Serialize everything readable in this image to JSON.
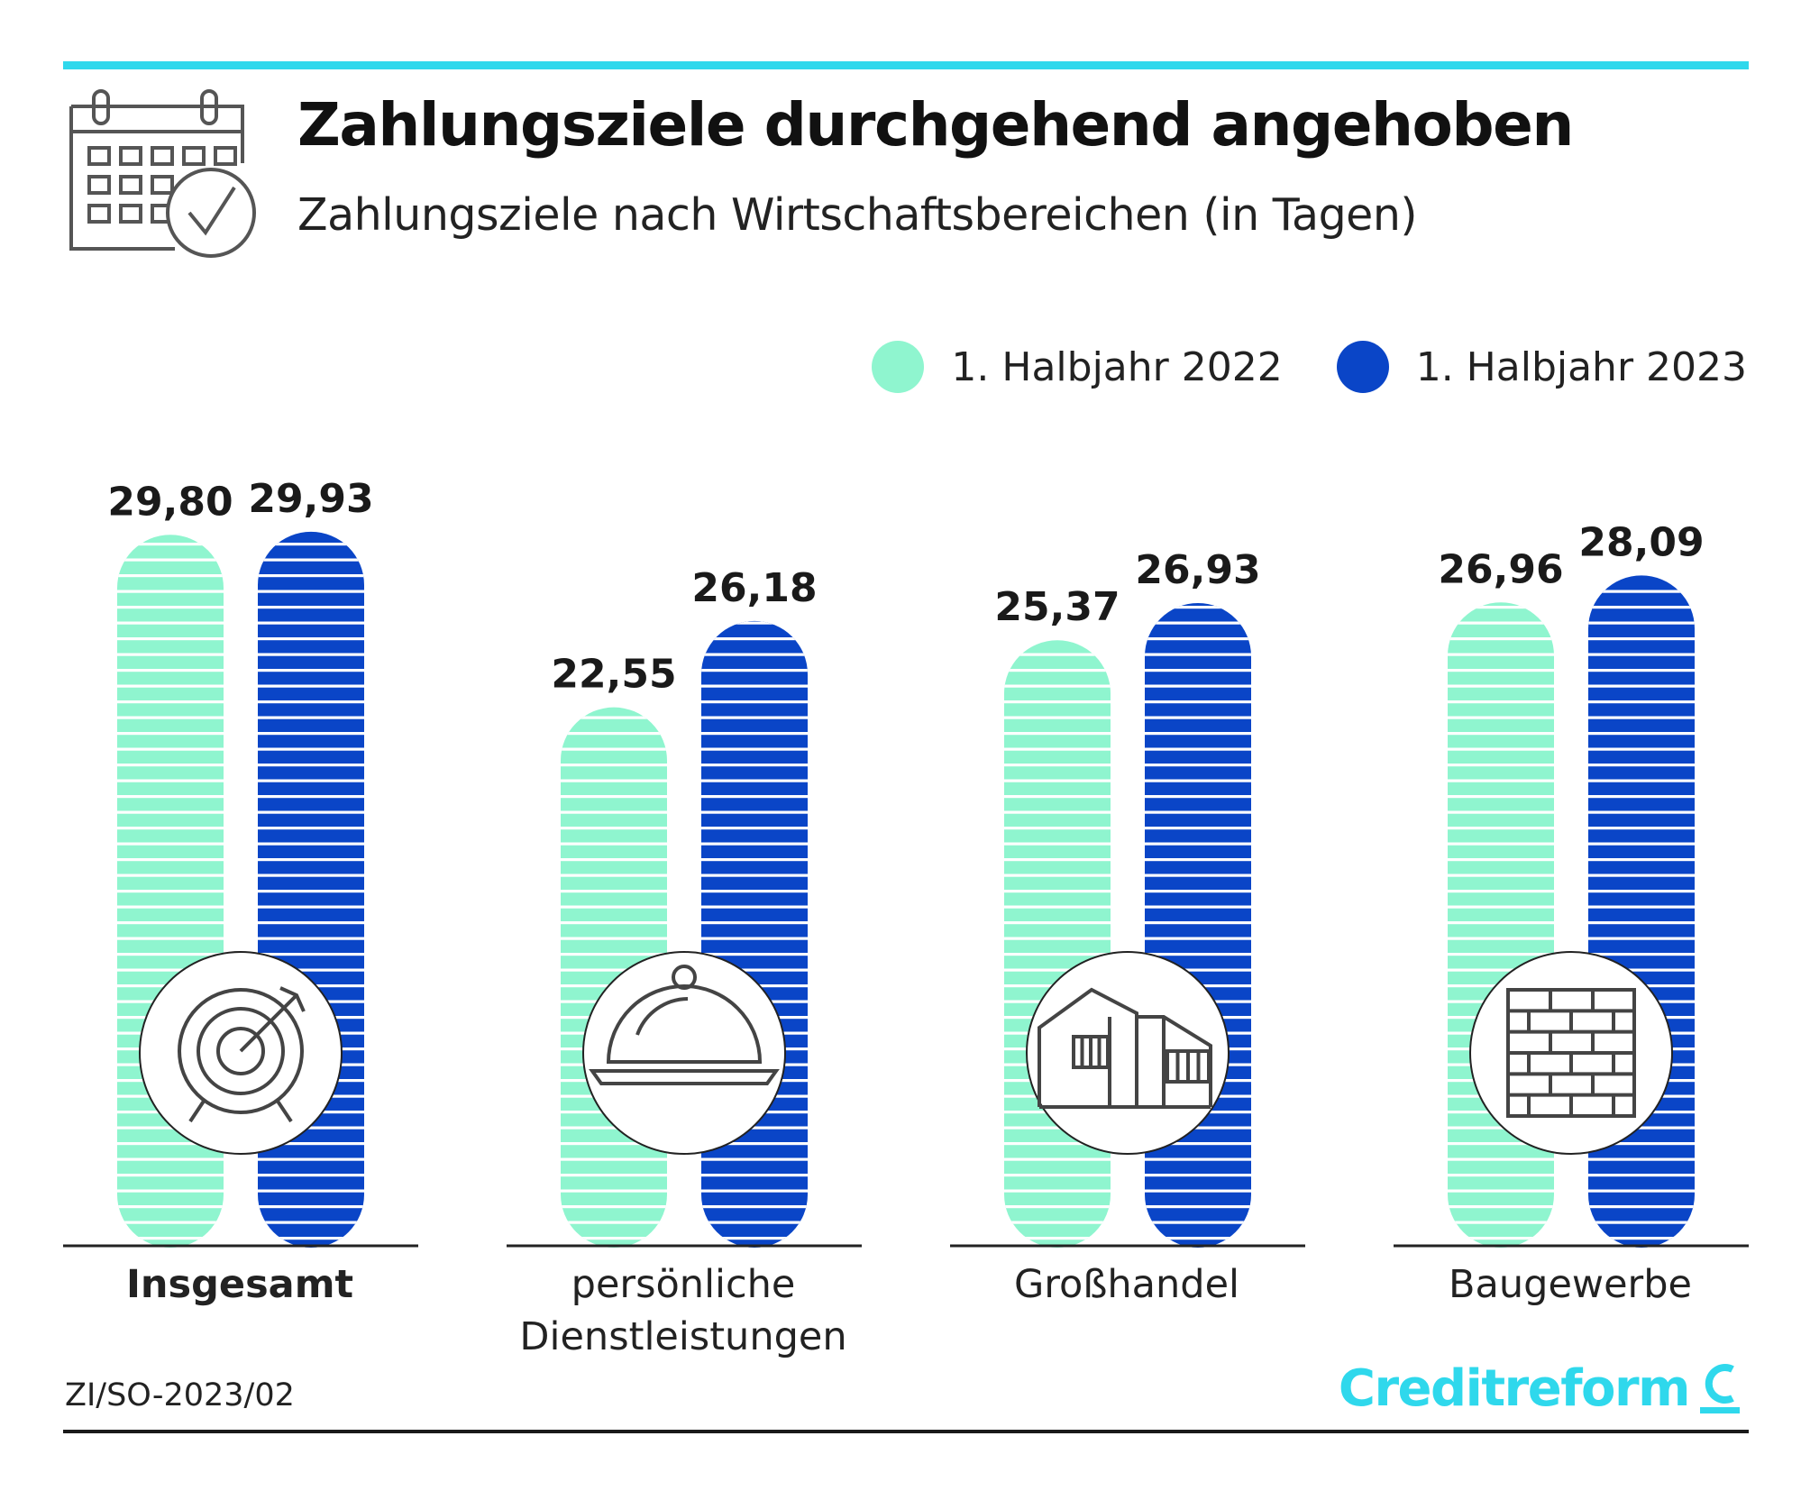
{
  "header": {
    "title": "Zahlungsziele durchgehend angehoben",
    "subtitle": "Zahlungsziele nach Wirtschaftsbereichen (in Tagen)"
  },
  "legend": {
    "items": [
      {
        "label": "1. Halbjahr 2022",
        "color": "#8ff5cf"
      },
      {
        "label": "1. Halbjahr 2023",
        "color": "#0a45c7"
      }
    ]
  },
  "chart_data": {
    "type": "bar",
    "title": "Zahlungsziele durchgehend angehoben",
    "subtitle": "Zahlungsziele nach Wirtschaftsbereichen (in Tagen)",
    "xlabel": "",
    "ylabel": "",
    "ylim": [
      0,
      30
    ],
    "categories": [
      "Insgesamt",
      "persönliche\nDienstleistungen",
      "Großhandel",
      "Baugewerbe"
    ],
    "category_icons": [
      "target-icon",
      "cloche-icon",
      "building-icon",
      "brick-wall-icon"
    ],
    "series": [
      {
        "name": "1. Halbjahr 2022",
        "values": [
          29.8,
          22.55,
          25.37,
          26.96
        ],
        "labels": [
          "29,80",
          "22,55",
          "25,37",
          "26,96"
        ]
      },
      {
        "name": "1. Halbjahr 2023",
        "values": [
          29.93,
          26.18,
          26.93,
          28.09
        ],
        "labels": [
          "29,93",
          "26,18",
          "26,93",
          "28,09"
        ]
      }
    ],
    "legend_position": "top-right",
    "grid": false
  },
  "footer": {
    "source": "ZI/SO-2023/02",
    "brand": "Creditreform"
  },
  "colors": {
    "accent": "#2fd8ec",
    "series_2022": "#8ff5cf",
    "series_2023": "#0a45c7"
  }
}
